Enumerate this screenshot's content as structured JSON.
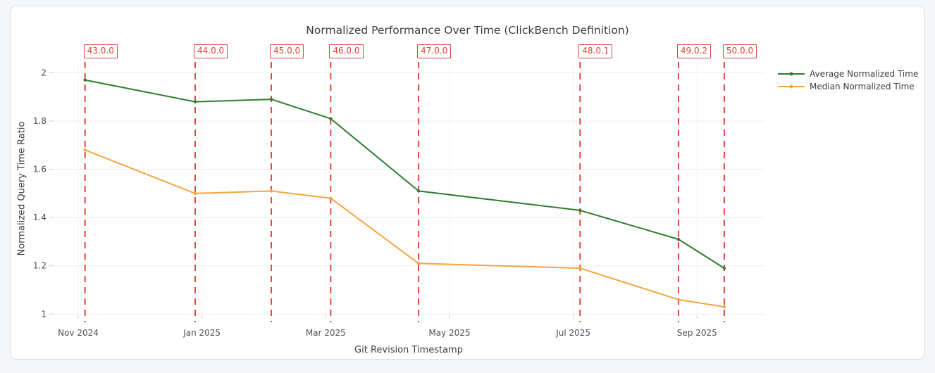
{
  "page": {
    "background": "#f6f7f9",
    "card_background": "#ffffff"
  },
  "chart_data": {
    "type": "line",
    "title": "Normalized Performance Over Time (ClickBench Definition)",
    "xlabel": "Git Revision Timestamp",
    "ylabel": "Normalized Query Time Ratio",
    "x_unit": "months since Nov 2024",
    "x_ticks": [
      {
        "t": 0,
        "label": "Nov 2024"
      },
      {
        "t": 2,
        "label": "Jan 2025"
      },
      {
        "t": 4,
        "label": "Mar 2025"
      },
      {
        "t": 6,
        "label": "May 2025"
      },
      {
        "t": 8,
        "label": "Jul 2025"
      },
      {
        "t": 10,
        "label": "Sep 2025"
      }
    ],
    "y_ticks": [
      {
        "v": 1,
        "label": "1"
      },
      {
        "v": 1.2,
        "label": "1.2"
      },
      {
        "v": 1.4,
        "label": "1.4"
      },
      {
        "v": 1.6,
        "label": "1.6"
      },
      {
        "v": 1.8,
        "label": "1.8"
      },
      {
        "v": 2,
        "label": "2"
      }
    ],
    "ylim": [
      1,
      2
    ],
    "grid": true,
    "legend_position": "right",
    "revisions": [
      {
        "label": "43.0.0",
        "t": 0.11
      },
      {
        "label": "44.0.0",
        "t": 1.89
      },
      {
        "label": "45.0.0",
        "t": 3.12
      },
      {
        "label": "46.0.0",
        "t": 4.08
      },
      {
        "label": "47.0.0",
        "t": 5.5
      },
      {
        "label": "48.0.1",
        "t": 8.11
      },
      {
        "label": "49.0.2",
        "t": 9.7
      },
      {
        "label": "50.0.0",
        "t": 10.44
      }
    ],
    "series": [
      {
        "name": "Average Normalized Time",
        "color": "#2e7d31",
        "values": [
          1.97,
          1.88,
          1.89,
          1.81,
          1.51,
          1.43,
          1.31,
          1.19
        ]
      },
      {
        "name": "Median Normalized Time",
        "color": "#f4a63f",
        "values": [
          1.68,
          1.5,
          1.51,
          1.48,
          1.21,
          1.19,
          1.06,
          1.03
        ]
      }
    ],
    "annotation_line_color": "#e2493d",
    "gridline_color": "#ededf1"
  }
}
